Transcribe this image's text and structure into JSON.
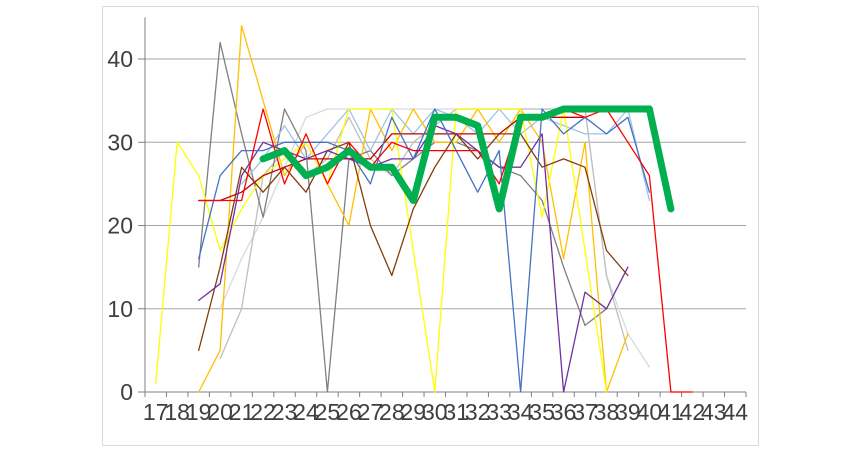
{
  "chart_data": {
    "type": "line",
    "title": "",
    "xlabel": "",
    "ylabel": "",
    "categories": [
      17,
      18,
      19,
      20,
      21,
      22,
      23,
      24,
      25,
      26,
      27,
      28,
      29,
      30,
      31,
      32,
      33,
      34,
      35,
      36,
      37,
      38,
      39,
      40,
      41,
      42,
      43,
      44
    ],
    "yticks": [
      0,
      10,
      20,
      30,
      40
    ],
    "ylim": [
      0,
      45
    ],
    "grid": true,
    "legend": "none",
    "axis_color": "#808080",
    "gridline_color": "#a6a6a6",
    "tick_label_color": "#3f3f3f",
    "frame_border_color": "#d9d9d9",
    "highlight_series": "green",
    "series": [
      {
        "name": "light-gray",
        "color": "#d9d9d9",
        "width": 1.3,
        "values": [
          null,
          null,
          null,
          10,
          16,
          21,
          27,
          33,
          34,
          34,
          34,
          34,
          34,
          34,
          34,
          34,
          34,
          34,
          34,
          34,
          34,
          14,
          7,
          3,
          null,
          null,
          null,
          null
        ]
      },
      {
        "name": "silver",
        "color": "#bfbfbf",
        "width": 1.3,
        "values": [
          null,
          null,
          null,
          4,
          10,
          26,
          29,
          26,
          28,
          33,
          28,
          26,
          30,
          32,
          34,
          34,
          34,
          34,
          34,
          34,
          34,
          14,
          5,
          null,
          null,
          null,
          null,
          null
        ]
      },
      {
        "name": "gray",
        "color": "#7f7f7f",
        "width": 1.3,
        "values": [
          null,
          null,
          15,
          42,
          31,
          21,
          34,
          29,
          0,
          28,
          29,
          26,
          28,
          30,
          30,
          29,
          27,
          26,
          23,
          15,
          8,
          10,
          null,
          null,
          null,
          null,
          null,
          null
        ]
      },
      {
        "name": "light-blue",
        "color": "#9dc3e6",
        "width": 1.3,
        "values": [
          null,
          null,
          null,
          null,
          25,
          28,
          32,
          28,
          31,
          34,
          29,
          34,
          31,
          34,
          33,
          31,
          34,
          31,
          33,
          32,
          31,
          31,
          34,
          23,
          null,
          null,
          null,
          null
        ]
      },
      {
        "name": "gold",
        "color": "#ffc000",
        "width": 1.3,
        "values": [
          null,
          null,
          0,
          5,
          44,
          35,
          26,
          30,
          25,
          20,
          34,
          29,
          34,
          30,
          30,
          34,
          30,
          34,
          30,
          16,
          30,
          0,
          7,
          null,
          null,
          null,
          null,
          null
        ]
      },
      {
        "name": "yellow",
        "color": "#ffff00",
        "width": 1.3,
        "values": [
          1,
          30,
          26,
          17,
          22,
          26,
          28,
          30,
          25,
          34,
          34,
          34,
          17,
          0,
          34,
          34,
          34,
          34,
          21,
          34,
          17,
          0,
          null,
          null,
          null,
          null,
          null,
          null
        ]
      },
      {
        "name": "brown",
        "color": "#843c0c",
        "width": 1.3,
        "values": [
          null,
          null,
          5,
          15,
          27,
          24,
          27,
          24,
          29,
          30,
          20,
          14,
          22,
          27,
          31,
          28,
          31,
          31,
          27,
          28,
          27,
          17,
          14,
          null,
          null,
          null,
          null,
          null
        ]
      },
      {
        "name": "dark-red",
        "color": "#c00000",
        "width": 1.3,
        "values": [
          null,
          null,
          23,
          23,
          24,
          26,
          27,
          28,
          28,
          28,
          28,
          31,
          31,
          31,
          31,
          31,
          31,
          33,
          33,
          33,
          33,
          null,
          null,
          null,
          null,
          null,
          null,
          null
        ]
      },
      {
        "name": "purple",
        "color": "#7030a0",
        "width": 1.3,
        "values": [
          null,
          null,
          11,
          13,
          26,
          30,
          29,
          28,
          29,
          28,
          27,
          28,
          28,
          32,
          31,
          29,
          27,
          27,
          31,
          0,
          12,
          10,
          15,
          null,
          null,
          null,
          null,
          null
        ]
      },
      {
        "name": "blue",
        "color": "#4472c4",
        "width": 1.3,
        "values": [
          null,
          null,
          16,
          26,
          29,
          29,
          30,
          30,
          30,
          29,
          25,
          33,
          28,
          34,
          29,
          24,
          29,
          0,
          34,
          31,
          33,
          31,
          33,
          24,
          null,
          null,
          null,
          null
        ]
      },
      {
        "name": "red",
        "color": "#ff0000",
        "width": 1.3,
        "values": [
          null,
          null,
          23,
          23,
          23,
          34,
          25,
          31,
          25,
          30,
          27,
          30,
          29,
          29,
          29,
          29,
          25,
          33,
          33,
          34,
          33,
          34,
          30,
          26,
          0,
          0,
          null,
          null
        ]
      },
      {
        "name": "green",
        "color": "#00b050",
        "width": 7,
        "values": [
          null,
          null,
          null,
          null,
          null,
          28,
          29,
          26,
          27,
          29,
          27,
          27,
          23,
          33,
          33,
          32,
          22,
          33,
          33,
          34,
          34,
          34,
          34,
          34,
          22,
          null,
          null,
          null
        ]
      }
    ]
  }
}
